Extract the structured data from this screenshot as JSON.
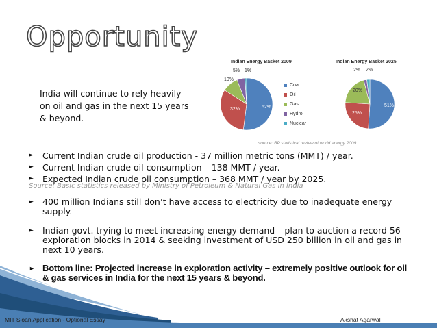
{
  "slide": {
    "title": "Opportunity",
    "intro": "India will continue to rely heavily on oil and gas in the next 15 years & beyond."
  },
  "charts": {
    "title_2009": "Indian Energy Basket 2009",
    "title_2025": "Indian Energy Basket 2025",
    "legend": [
      {
        "label": "Coal",
        "color": "#4f81bd"
      },
      {
        "label": "Oil",
        "color": "#c0504d"
      },
      {
        "label": "Gas",
        "color": "#9bbb59"
      },
      {
        "label": "Hydro",
        "color": "#8064a2"
      },
      {
        "label": "Nuclear",
        "color": "#4bacc6"
      }
    ],
    "source": "source: BP statistical review of world energy 2009",
    "labels_2009": [
      "52%",
      "32%",
      "10%",
      "5%",
      "1%"
    ],
    "labels_2025": [
      "51%",
      "25%",
      "20%",
      "2%",
      "2%"
    ]
  },
  "chart_data": [
    {
      "type": "pie",
      "title": "Indian Energy Basket 2009",
      "categories": [
        "Coal",
        "Oil",
        "Gas",
        "Hydro",
        "Nuclear"
      ],
      "values": [
        52,
        32,
        10,
        5,
        1
      ]
    },
    {
      "type": "pie",
      "title": "Indian Energy Basket 2025",
      "categories": [
        "Coal",
        "Oil",
        "Gas",
        "Hydro",
        "Nuclear"
      ],
      "values": [
        51,
        25,
        20,
        2,
        2
      ]
    }
  ],
  "bullets": [
    "Current Indian crude oil production - 37 million metric tons (MMT) / year.",
    "Current Indian crude oil consumption – 138 MMT / year.",
    "Expected Indian crude oil consumption – 368 MMT / year by 2025."
  ],
  "source2": "Source: Basic statistics released by Ministry of Petroleum & Natural Gas in India",
  "bullets2": [
    "400 million Indians still don’t have access to electricity due to inadequate energy supply.",
    "Indian govt. trying to meet increasing energy demand – plan to auction a record 56 exploration blocks in 2014 & seeking investment of USD 250 billion in oil and gas in next 10 years.",
    "Bottom line: Projected increase in exploration activity – extremely positive outlook for oil & gas services in India for the next 15 years & beyond."
  ],
  "footer": {
    "left": "MIT Sloan Application -  Optional Essay",
    "right": "Akshat Agarwal"
  }
}
